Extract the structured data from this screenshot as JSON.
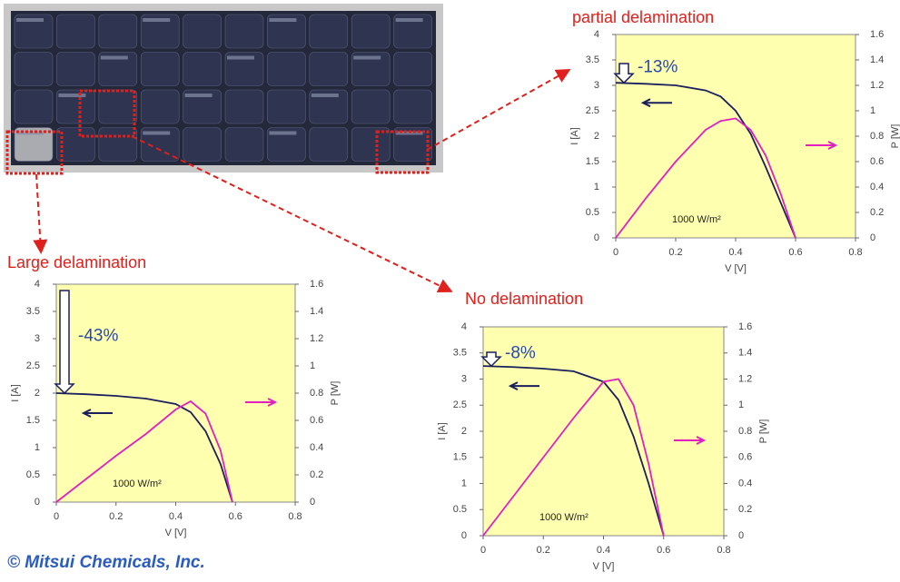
{
  "chart_data": [
    {
      "type": "line",
      "title": "partial delamination",
      "xlabel": "V [V]",
      "ylabel": "I [A]",
      "y2label": "P [W]",
      "x": [
        0,
        0.1,
        0.2,
        0.3,
        0.35,
        0.4,
        0.45,
        0.5,
        0.55,
        0.6
      ],
      "xlim": [
        0,
        0.8
      ],
      "xticks": [
        0,
        0.2,
        0.4,
        0.6,
        0.8
      ],
      "ylim": [
        0,
        4
      ],
      "yticks": [
        0,
        0.5,
        1,
        1.5,
        2,
        2.5,
        3,
        3.5,
        4
      ],
      "y2lim": [
        0,
        1.6
      ],
      "y2ticks": [
        0,
        0.2,
        0.4,
        0.6,
        0.8,
        1,
        1.2,
        1.4,
        1.6
      ],
      "series": [
        {
          "color": "#1a1f5e",
          "values": [
            3.05,
            3.03,
            3.0,
            2.9,
            2.78,
            2.5,
            2.05,
            1.4,
            0.7,
            0
          ]
        },
        {
          "color": "#e020c0",
          "axis": "y2",
          "values": [
            0,
            0.31,
            0.6,
            0.85,
            0.92,
            0.94,
            0.85,
            0.65,
            0.35,
            0
          ]
        }
      ],
      "annotations": [
        "-13%",
        "1000 W/m²"
      ]
    },
    {
      "type": "line",
      "title": "Large delamination",
      "xlabel": "V [V]",
      "ylabel": "I [A]",
      "y2label": "P [W]",
      "x": [
        0,
        0.1,
        0.2,
        0.3,
        0.4,
        0.45,
        0.5,
        0.55,
        0.59
      ],
      "xlim": [
        0,
        0.8
      ],
      "xticks": [
        0,
        0.2,
        0.4,
        0.6,
        0.8
      ],
      "ylim": [
        0,
        4
      ],
      "yticks": [
        0,
        0.5,
        1,
        1.5,
        2,
        2.5,
        3,
        3.5,
        4
      ],
      "y2lim": [
        0,
        1.6
      ],
      "y2ticks": [
        0,
        0.2,
        0.4,
        0.6,
        0.8,
        1,
        1.2,
        1.4,
        1.6
      ],
      "series": [
        {
          "color": "#1a1f5e",
          "values": [
            2.0,
            1.98,
            1.95,
            1.9,
            1.8,
            1.65,
            1.3,
            0.7,
            0
          ]
        },
        {
          "color": "#e020c0",
          "axis": "y2",
          "values": [
            0,
            0.17,
            0.34,
            0.5,
            0.68,
            0.74,
            0.65,
            0.38,
            0
          ]
        }
      ],
      "annotations": [
        "-43%",
        "1000 W/m²"
      ]
    },
    {
      "type": "line",
      "title": "No delamination",
      "xlabel": "V [V]",
      "ylabel": "I [A]",
      "y2label": "P [W]",
      "x": [
        0,
        0.1,
        0.2,
        0.3,
        0.4,
        0.45,
        0.5,
        0.55,
        0.6
      ],
      "xlim": [
        0,
        0.8
      ],
      "xticks": [
        0,
        0.2,
        0.4,
        0.6,
        0.8
      ],
      "ylim": [
        0,
        4
      ],
      "yticks": [
        0,
        0.5,
        1,
        1.5,
        2,
        2.5,
        3,
        3.5,
        4
      ],
      "y2lim": [
        0,
        1.6
      ],
      "y2ticks": [
        0,
        0.2,
        0.4,
        0.6,
        0.8,
        1,
        1.2,
        1.4,
        1.6
      ],
      "series": [
        {
          "color": "#1a1f5e",
          "values": [
            3.25,
            3.23,
            3.2,
            3.15,
            2.95,
            2.6,
            1.9,
            1.0,
            0
          ]
        },
        {
          "color": "#e020c0",
          "axis": "y2",
          "values": [
            0,
            0.3,
            0.6,
            0.9,
            1.18,
            1.2,
            1.0,
            0.55,
            0
          ]
        }
      ],
      "annotations": [
        "-8%",
        "1000 W/m²"
      ]
    }
  ],
  "footer": "© Mitsui Chemicals, Inc."
}
